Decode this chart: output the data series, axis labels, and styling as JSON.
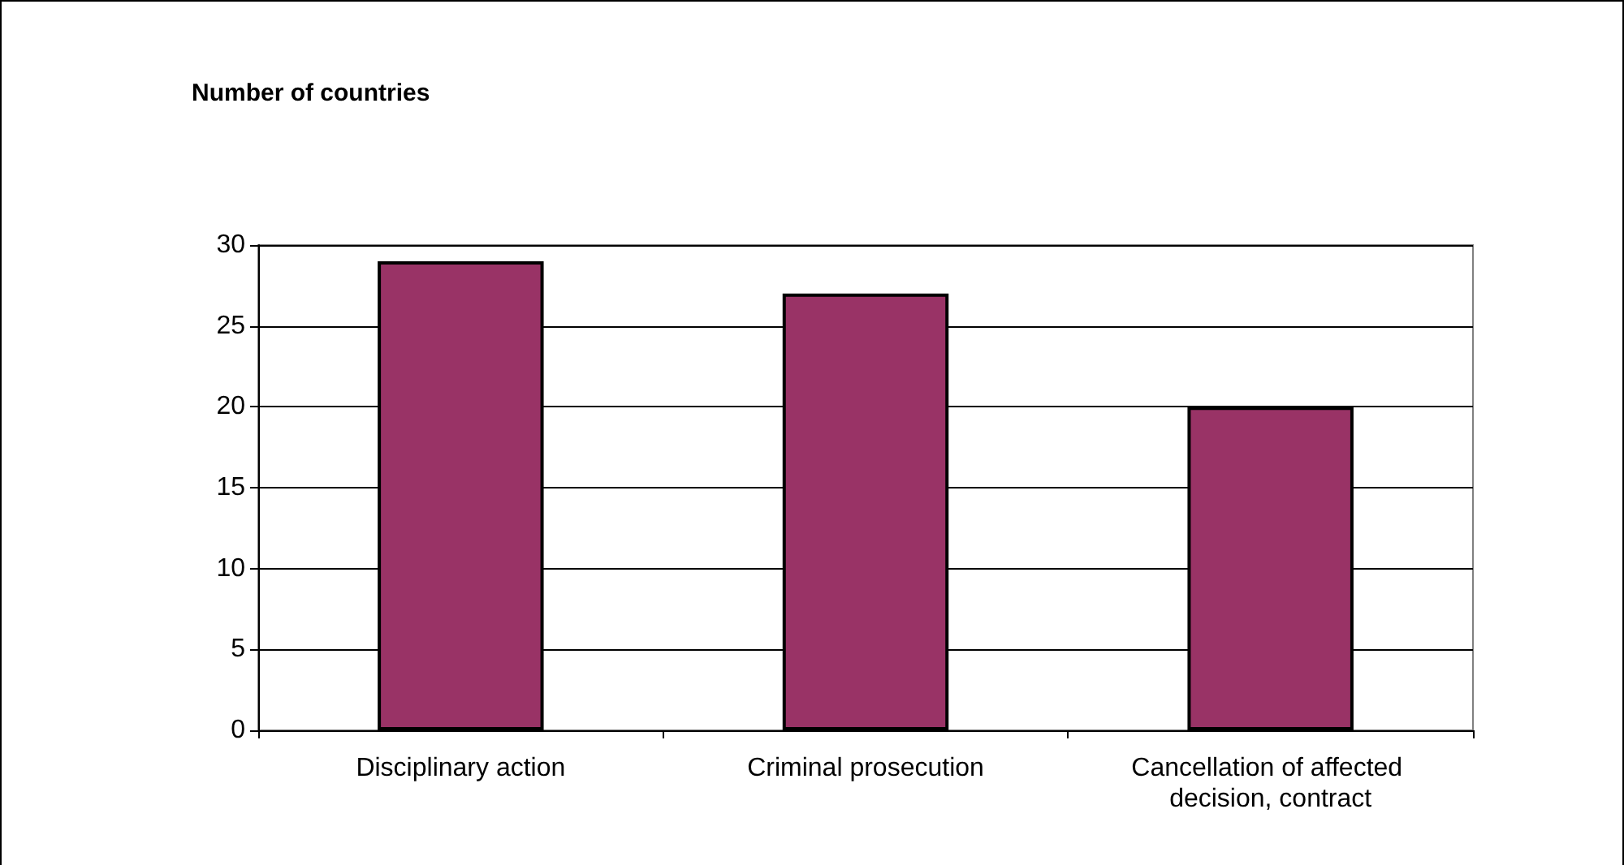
{
  "chart_data": {
    "type": "bar",
    "title": "Number of countries",
    "categories": [
      "Disciplinary action",
      "Criminal prosecution",
      "Cancellation of affected decision, contract"
    ],
    "values": [
      29,
      27,
      20
    ],
    "color": "#993366",
    "ylim": [
      0,
      30
    ],
    "yticks": [
      0,
      5,
      10,
      15,
      20,
      25,
      30
    ],
    "grid": "y"
  }
}
